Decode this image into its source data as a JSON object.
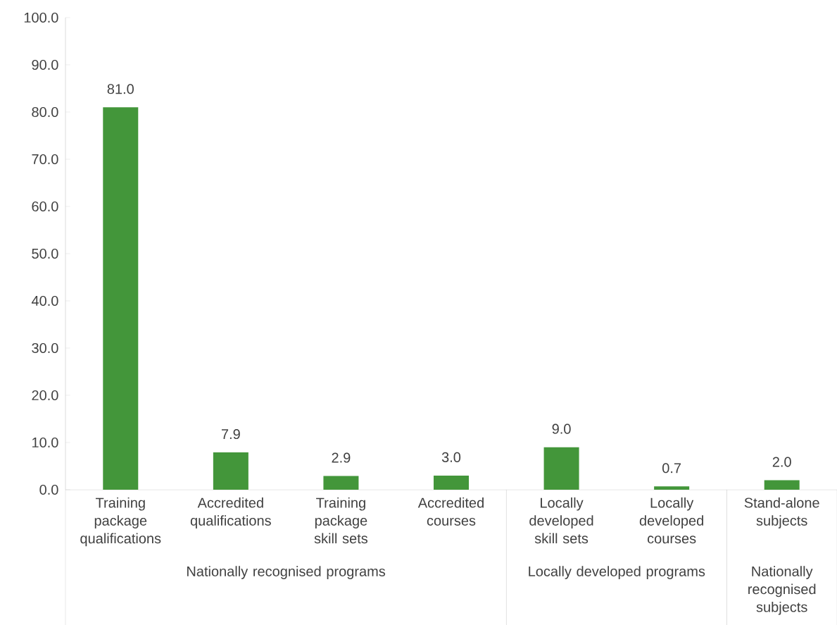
{
  "chart_data": {
    "type": "bar",
    "categories": [
      "Training package qualifications",
      "Accredited qualifications",
      "Training package skill sets",
      "Accredited courses",
      "Locally developed skill sets",
      "Locally developed courses",
      "Stand-alone subjects"
    ],
    "values": [
      81.0,
      7.9,
      2.9,
      3.0,
      9.0,
      0.7,
      2.0
    ],
    "value_labels": [
      "81.0",
      "7.9",
      "2.9",
      "3.0",
      "9.0",
      "0.7",
      "2.0"
    ],
    "color": "#43963a",
    "ylim": [
      0,
      100
    ],
    "yticks": [
      {
        "value": 0,
        "label": "0.0"
      },
      {
        "value": 10,
        "label": "10.0"
      },
      {
        "value": 20,
        "label": "20.0"
      },
      {
        "value": 30,
        "label": "30.0"
      },
      {
        "value": 40,
        "label": "40.0"
      },
      {
        "value": 50,
        "label": "50.0"
      },
      {
        "value": 60,
        "label": "60.0"
      },
      {
        "value": 70,
        "label": "70.0"
      },
      {
        "value": 80,
        "label": "80.0"
      },
      {
        "value": 90,
        "label": "90.0"
      },
      {
        "value": 100,
        "label": "100.0"
      }
    ],
    "grid": false,
    "annotations": [
      "Nationally recognised programs",
      "Locally developed programs",
      "Nationally recognised subjects"
    ]
  }
}
